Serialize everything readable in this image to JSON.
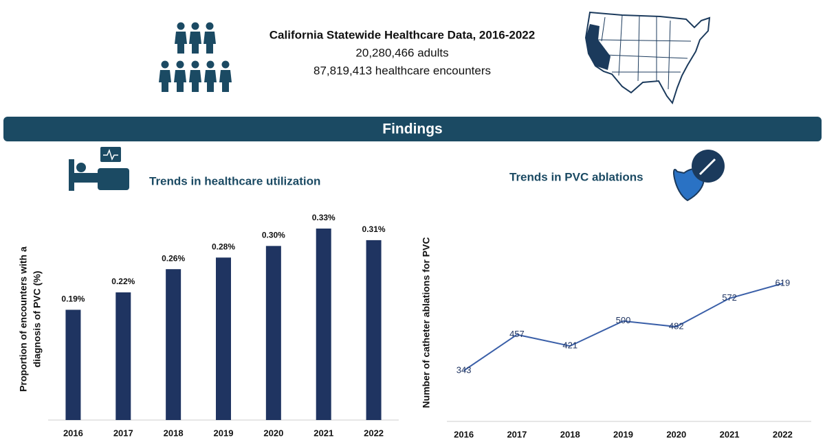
{
  "header": {
    "title": "California Statewide Healthcare Data, 2016-2022",
    "lines": [
      "20,280,466 adults",
      "87,819,413 healthcare encounters"
    ]
  },
  "banner": "Findings",
  "chart_data": [
    {
      "type": "bar",
      "title": "Trends in healthcare utilization",
      "ylabel": [
        "Proportion of  encounters with a",
        "diagnosis of PVC (%)"
      ],
      "categories": [
        "2016",
        "2017",
        "2018",
        "2019",
        "2020",
        "2021",
        "2022"
      ],
      "values": [
        0.19,
        0.22,
        0.26,
        0.28,
        0.3,
        0.33,
        0.31
      ],
      "value_labels": [
        "0.19%",
        "0.22%",
        "0.26%",
        "0.28%",
        "0.30%",
        "0.33%",
        "0.31%"
      ],
      "color": "#1f3461"
    },
    {
      "type": "line",
      "title": "Trends in PVC ablations",
      "ylabel": "Number of catheter ablations for PVC",
      "categories": [
        "2016",
        "2017",
        "2018",
        "2019",
        "2020",
        "2021",
        "2022"
      ],
      "values": [
        343,
        457,
        421,
        500,
        482,
        572,
        619
      ],
      "color": "#3a5fa8"
    }
  ]
}
